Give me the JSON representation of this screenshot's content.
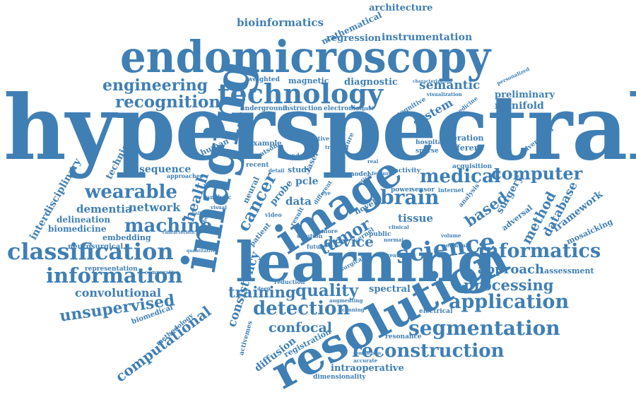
{
  "cloud": {
    "color": "#3f7fb4",
    "words": [
      "hyperspectral",
      "endomicroscopy",
      "learning",
      "imaging",
      "resolution",
      "image",
      "technology",
      "science",
      "classification",
      "informatics",
      "information",
      "segmentation",
      "reconstruction",
      "application",
      "detection",
      "brain",
      "medical",
      "computer",
      "machine",
      "wearable",
      "recognition",
      "engineering",
      "unsupervised",
      "quality",
      "processing",
      "training",
      "approach",
      "convolutional",
      "computational",
      "confocal",
      "tumor",
      "cancer",
      "device",
      "based",
      "method",
      "health",
      "network",
      "semantic",
      "system",
      "diagnostic",
      "instrumentation",
      "regression",
      "architecture",
      "bioinformatics",
      "mathematical",
      "dementia",
      "biomedicine",
      "delineation",
      "embedding",
      "representation",
      "biomedical",
      "methodology",
      "interdisciplinary",
      "technique",
      "sequence",
      "human",
      "data",
      "pcle",
      "probe",
      "laser",
      "study",
      "spectral",
      "consistency",
      "diffusion",
      "registration",
      "intraoperative",
      "dimensionality",
      "tissue",
      "database",
      "framework",
      "mosaicking",
      "assessment",
      "preliminary",
      "manifold",
      "magnetic",
      "weighted",
      "underground",
      "instruction",
      "electronic",
      "cognitive",
      "medicine",
      "visualization",
      "personalized",
      "characterization",
      "operation",
      "different",
      "hospital",
      "sparse",
      "activity",
      "acquisition",
      "adversarial",
      "surgery",
      "adversal",
      "power",
      "sensor",
      "internet",
      "analysis",
      "resonance",
      "electrical",
      "novel",
      "neural",
      "public",
      "kernel",
      "future",
      "more",
      "surgical",
      "activemes",
      "example",
      "watson",
      "london",
      "feature",
      "effective",
      "model",
      "recent",
      "approaches",
      "synthetic",
      "analytic",
      "challenging",
      "characteristic",
      "comparative",
      "quantitative",
      "reduction",
      "augmenting",
      "neurosurgical",
      "potential",
      "accurate",
      "comparison",
      "normal",
      "video",
      "result",
      "solution",
      "patient",
      "current",
      "different",
      "eye",
      "real",
      "optical",
      "visual",
      "features",
      "tracking",
      "detail",
      "deep",
      "scanning",
      "volume",
      "signal",
      "clinical",
      "ratio",
      "texture"
    ]
  }
}
